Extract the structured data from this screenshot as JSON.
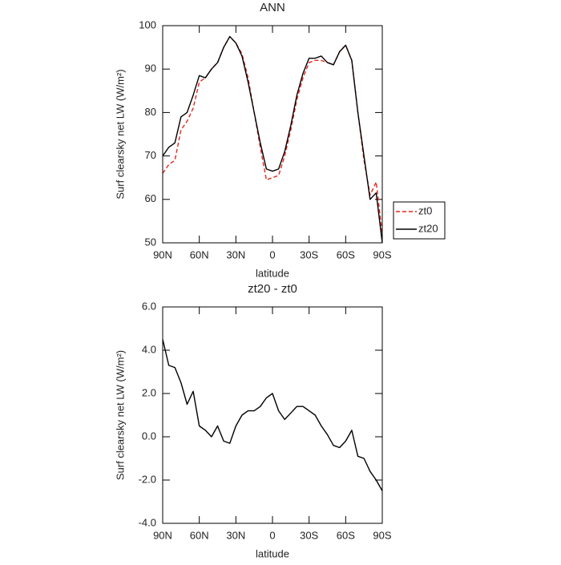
{
  "chart_data": [
    {
      "type": "line",
      "title": "ANN",
      "x_label": "latitude",
      "y_label": "Surf clearsky net LW (W/m²)",
      "x": [
        90,
        85,
        80,
        75,
        70,
        65,
        60,
        55,
        50,
        45,
        40,
        35,
        30,
        25,
        20,
        15,
        10,
        5,
        0,
        -5,
        -10,
        -15,
        -20,
        -25,
        -30,
        -35,
        -40,
        -45,
        -50,
        -55,
        -60,
        -65,
        -70,
        -75,
        -80,
        -85,
        -90
      ],
      "xlim": [
        90,
        -90
      ],
      "xticks": [
        {
          "value": 90,
          "label": "90N"
        },
        {
          "value": 60,
          "label": "60N"
        },
        {
          "value": 30,
          "label": "30N"
        },
        0,
        {
          "value": -30,
          "label": "30S"
        },
        {
          "value": -60,
          "label": "60S"
        },
        {
          "value": -90,
          "label": "90S"
        }
      ],
      "ylim": [
        50,
        100
      ],
      "yticks": [
        50,
        60,
        70,
        80,
        90,
        100
      ],
      "legend": "right",
      "series": [
        {
          "name": "zt0",
          "color": "#e8231c",
          "line_style": "dashed",
          "values": [
            66,
            68,
            69,
            76,
            78,
            81,
            87,
            88,
            90,
            91.5,
            95,
            97.5,
            96,
            93.5,
            88,
            80,
            72,
            64.5,
            65,
            65.5,
            70,
            76,
            83,
            88,
            91.5,
            92,
            92,
            91.5,
            91,
            94,
            95.5,
            92,
            80,
            69,
            61,
            64,
            52
          ]
        },
        {
          "name": "zt20",
          "color": "#000000",
          "line_style": "solid",
          "values": [
            70,
            72,
            73,
            79,
            80,
            84,
            88.5,
            88,
            90,
            91.5,
            95,
            97.5,
            96,
            93,
            87,
            80,
            73,
            67,
            66.5,
            67,
            71,
            77,
            84,
            89,
            92.5,
            92.5,
            93,
            91.5,
            91,
            94,
            95.5,
            92,
            80,
            70,
            60,
            61.5,
            50
          ]
        }
      ]
    },
    {
      "type": "line",
      "title": "zt20 - zt0",
      "x_label": "latitude",
      "y_label": "Surf clearsky net LW (W/m²)",
      "x": [
        90,
        85,
        80,
        75,
        70,
        65,
        60,
        55,
        50,
        45,
        40,
        35,
        30,
        25,
        20,
        15,
        10,
        5,
        0,
        -5,
        -10,
        -15,
        -20,
        -25,
        -30,
        -35,
        -40,
        -45,
        -50,
        -55,
        -60,
        -65,
        -70,
        -75,
        -80,
        -85,
        -90
      ],
      "xlim": [
        90,
        -90
      ],
      "xticks": [
        {
          "value": 90,
          "label": "90N"
        },
        {
          "value": 60,
          "label": "60N"
        },
        {
          "value": 30,
          "label": "30N"
        },
        0,
        {
          "value": -30,
          "label": "30S"
        },
        {
          "value": -60,
          "label": "60S"
        },
        {
          "value": -90,
          "label": "90S"
        }
      ],
      "ylim": [
        -4,
        6
      ],
      "yticks": [
        {
          "value": -4,
          "label": "-4.0"
        },
        {
          "value": -2,
          "label": "-2.0"
        },
        {
          "value": 0,
          "label": "0.0"
        },
        {
          "value": 2,
          "label": "2.0"
        },
        {
          "value": 4,
          "label": "4.0"
        },
        {
          "value": 6,
          "label": "6.0"
        }
      ],
      "series": [
        {
          "color": "#000000",
          "line_style": "solid",
          "values": [
            4.5,
            3.3,
            3.2,
            2.5,
            1.5,
            2.1,
            0.5,
            0.3,
            0,
            0.5,
            -0.2,
            -0.3,
            0.5,
            1.0,
            1.2,
            1.2,
            1.4,
            1.8,
            2.0,
            1.2,
            0.8,
            1.1,
            1.4,
            1.4,
            1.2,
            1.0,
            0.5,
            0.1,
            -0.4,
            -0.5,
            -0.2,
            0.3,
            -0.9,
            -1.0,
            -1.6,
            -2.0,
            -2.5
          ]
        }
      ]
    }
  ]
}
